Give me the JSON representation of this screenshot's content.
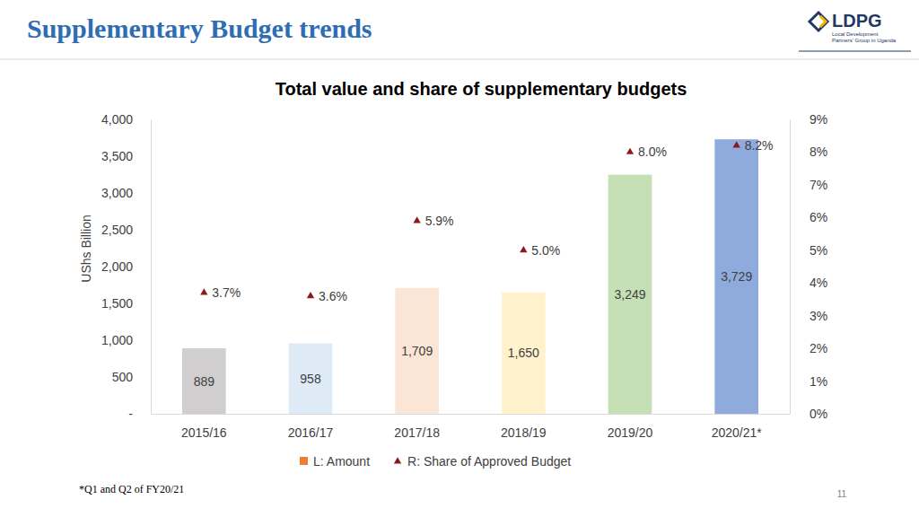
{
  "header": {
    "title": "Supplementary Budget trends",
    "logo": {
      "text": "LDPG",
      "subtitle": [
        "Local Development",
        "Partners' Group in Uganda"
      ]
    }
  },
  "chart_data": {
    "type": "bar",
    "title": "Total value and share of supplementary budgets",
    "y_label": "UShs Billion",
    "categories": [
      "2015/16",
      "2016/17",
      "2017/18",
      "2018/19",
      "2019/20",
      "2020/21*"
    ],
    "series": [
      {
        "name": "L: Amount",
        "type": "bar",
        "color": "#ed7d31",
        "colors": [
          "#d0cece",
          "#deebf7",
          "#fbe5d6",
          "#fff2cc",
          "#c5e0b4",
          "#8faadc"
        ],
        "values": [
          889,
          958,
          1709,
          1650,
          3249,
          3729
        ],
        "value_labels": [
          "889",
          "958",
          "1,709",
          "1,650",
          "3,249",
          "3,729"
        ]
      },
      {
        "name": "R: Share of Approved Budget",
        "type": "scatter",
        "axis": "y2",
        "marker": "triangle",
        "color": "#8b1a1a",
        "values": [
          3.7,
          3.6,
          5.9,
          5.0,
          8.0,
          8.2
        ],
        "value_labels": [
          "3.7%",
          "3.6%",
          "5.9%",
          "5.0%",
          "8.0%",
          "8.2%"
        ]
      }
    ],
    "ylim": [
      0,
      4000
    ],
    "yticks": [
      {
        "value": 0,
        "label": "-"
      },
      500,
      {
        "value": 1000,
        "label": "1,000"
      },
      {
        "value": 1500,
        "label": "1,500"
      },
      {
        "value": 2000,
        "label": "2,000"
      },
      {
        "value": 2500,
        "label": "2,500"
      },
      {
        "value": 3000,
        "label": "3,000"
      },
      {
        "value": 3500,
        "label": "3,500"
      },
      {
        "value": 4000,
        "label": "4,000"
      }
    ],
    "y2lim": [
      0,
      9
    ],
    "y2ticks": [
      {
        "value": 0,
        "label": "0%"
      },
      {
        "value": 1,
        "label": "1%"
      },
      {
        "value": 2,
        "label": "2%"
      },
      {
        "value": 3,
        "label": "3%"
      },
      {
        "value": 4,
        "label": "4%"
      },
      {
        "value": 5,
        "label": "5%"
      },
      {
        "value": 6,
        "label": "6%"
      },
      {
        "value": 7,
        "label": "7%"
      },
      {
        "value": 8,
        "label": "8%"
      },
      {
        "value": 9,
        "label": "9%"
      }
    ],
    "grid": false,
    "legend": "bottom",
    "data_labels": true
  },
  "footnote": "*Q1 and Q2 of FY20/21",
  "page_number": "11"
}
